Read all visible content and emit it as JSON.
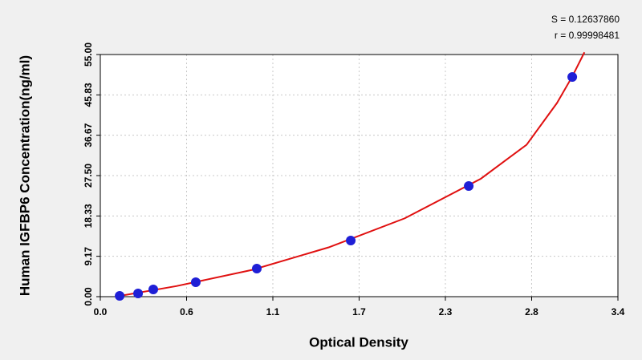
{
  "chart_data": {
    "type": "scatter",
    "xlabel": "Optical Density",
    "ylabel": "Human IGFBP6 Concentration(ng/ml)",
    "annotations": [
      "S = 0.12637860",
      "r = 0.99998481"
    ],
    "series": [
      {
        "color": "#1f1fd6",
        "x": [
          0.127,
          0.248,
          0.348,
          0.627,
          1.028,
          1.645,
          2.42,
          3.1
        ],
        "values": [
          0.18,
          0.73,
          1.64,
          3.28,
          6.37,
          12.75,
          25.13,
          49.9
        ]
      },
      {
        "color": "#e01010",
        "style": "line",
        "x": [
          0.1,
          0.5,
          1.0,
          1.5,
          2.0,
          2.5,
          2.8,
          3.0,
          3.1,
          3.18
        ],
        "values": [
          0,
          2.4,
          6.1,
          11.2,
          17.8,
          26.8,
          34.5,
          44,
          50,
          55.5
        ]
      }
    ],
    "xlim": [
      0,
      3.4
    ],
    "ylim": [
      0,
      55
    ],
    "xticks": [
      {
        "value": 0,
        "label": "0.0"
      },
      {
        "value": 0.5667,
        "label": "0.6"
      },
      {
        "value": 1.1333,
        "label": "1.1"
      },
      1.7,
      {
        "value": 2.2667,
        "label": "2.3"
      },
      {
        "value": 2.8333,
        "label": "2.8"
      },
      3.4
    ],
    "yticks": [
      {
        "value": 0,
        "label": "0.00"
      },
      9.17,
      18.33,
      {
        "value": 27.5,
        "label": "27.50"
      },
      36.67,
      45.83,
      {
        "value": 55,
        "label": "55.00"
      }
    ],
    "grid": true
  }
}
